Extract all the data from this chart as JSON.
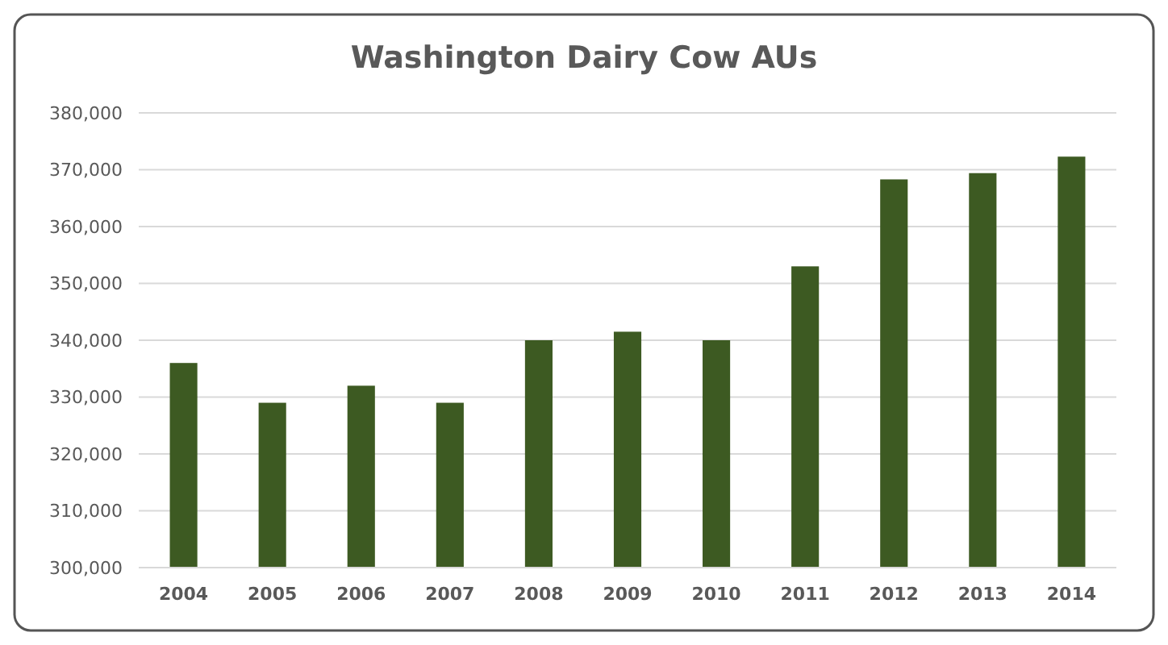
{
  "chart_data": {
    "type": "bar",
    "title": "Washington Dairy Cow AUs",
    "categories": [
      "2004",
      "2005",
      "2006",
      "2007",
      "2008",
      "2009",
      "2010",
      "2011",
      "2012",
      "2013",
      "2014"
    ],
    "values": [
      336000,
      329000,
      332000,
      329000,
      340000,
      341500,
      340000,
      353000,
      368300,
      369400,
      372300
    ],
    "color": "#3d5a22",
    "ylim": [
      300000,
      380000
    ],
    "yticks": [
      {
        "value": 300000,
        "label": "300,000"
      },
      {
        "value": 310000,
        "label": "310,000"
      },
      {
        "value": 320000,
        "label": "320,000"
      },
      {
        "value": 330000,
        "label": "330,000"
      },
      {
        "value": 340000,
        "label": "340,000"
      },
      {
        "value": 350000,
        "label": "350,000"
      },
      {
        "value": 360000,
        "label": "360,000"
      },
      {
        "value": 370000,
        "label": "370,000"
      },
      {
        "value": 380000,
        "label": "380,000"
      }
    ],
    "grid": "y"
  }
}
